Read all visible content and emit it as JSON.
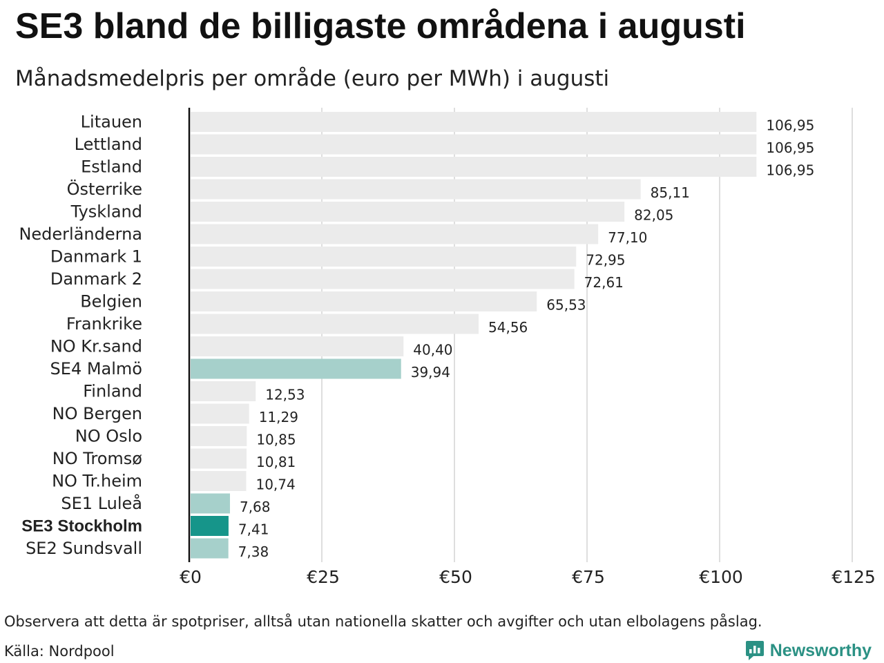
{
  "header": {
    "title": "SE3 bland de billigaste områdena i augusti",
    "subtitle": "Månadsmedelpris per område (euro per MWh) i augusti"
  },
  "footer": {
    "note": "Observera att detta är spotpriser, alltså utan nationella skatter och avgifter och utan elbolagens påslag.",
    "source": "Källa: Nordpool",
    "brand": "Newsworthy",
    "brand_icon": "newsworthy-logo-icon"
  },
  "colors": {
    "default_bar": "#ebebeb",
    "swedish_bar": "#a6d0cb",
    "highlight_bar": "#16958a",
    "grid": "#c8c8c8",
    "axis": "#111111",
    "brand": "#2b9184"
  },
  "chart_data": {
    "type": "bar",
    "orientation": "horizontal",
    "categories": [
      "Litauen",
      "Lettland",
      "Estland",
      "Österrike",
      "Tyskland",
      "Nederländerna",
      "Danmark  1",
      "Danmark  2",
      "Belgien",
      "Frankrike",
      "NO Kr.sand",
      "SE4  Malmö",
      "Finland",
      "NO Bergen",
      "NO Oslo",
      "NO Tromsø",
      "NO Tr.heim",
      "SE1  Luleå",
      "SE3 Stockholm",
      "SE2  Sundsvall"
    ],
    "values": [
      106.95,
      106.95,
      106.95,
      85.11,
      82.05,
      77.1,
      72.95,
      72.61,
      65.53,
      54.56,
      40.4,
      39.94,
      12.53,
      11.29,
      10.85,
      10.81,
      10.74,
      7.68,
      7.41,
      7.38
    ],
    "value_labels": [
      "106,95",
      "106,95",
      "106,95",
      "85,11",
      "82,05",
      "77,10",
      "72,95",
      "72,61",
      "65,53",
      "54,56",
      "40,40",
      "39,94",
      "12,53",
      "11,29",
      "10,85",
      "10,81",
      "10,74",
      "7,68",
      "7,41",
      "7,38"
    ],
    "bar_style": [
      "default",
      "default",
      "default",
      "default",
      "default",
      "default",
      "default",
      "default",
      "default",
      "default",
      "default",
      "swedish",
      "default",
      "default",
      "default",
      "default",
      "default",
      "swedish",
      "highlight",
      "swedish"
    ],
    "xlim": [
      0,
      125
    ],
    "xticks": [
      0,
      25,
      50,
      75,
      100,
      125
    ],
    "xtick_labels": [
      "€0",
      "€25",
      "€50",
      "€75",
      "€100",
      "€125"
    ],
    "grid": true
  }
}
